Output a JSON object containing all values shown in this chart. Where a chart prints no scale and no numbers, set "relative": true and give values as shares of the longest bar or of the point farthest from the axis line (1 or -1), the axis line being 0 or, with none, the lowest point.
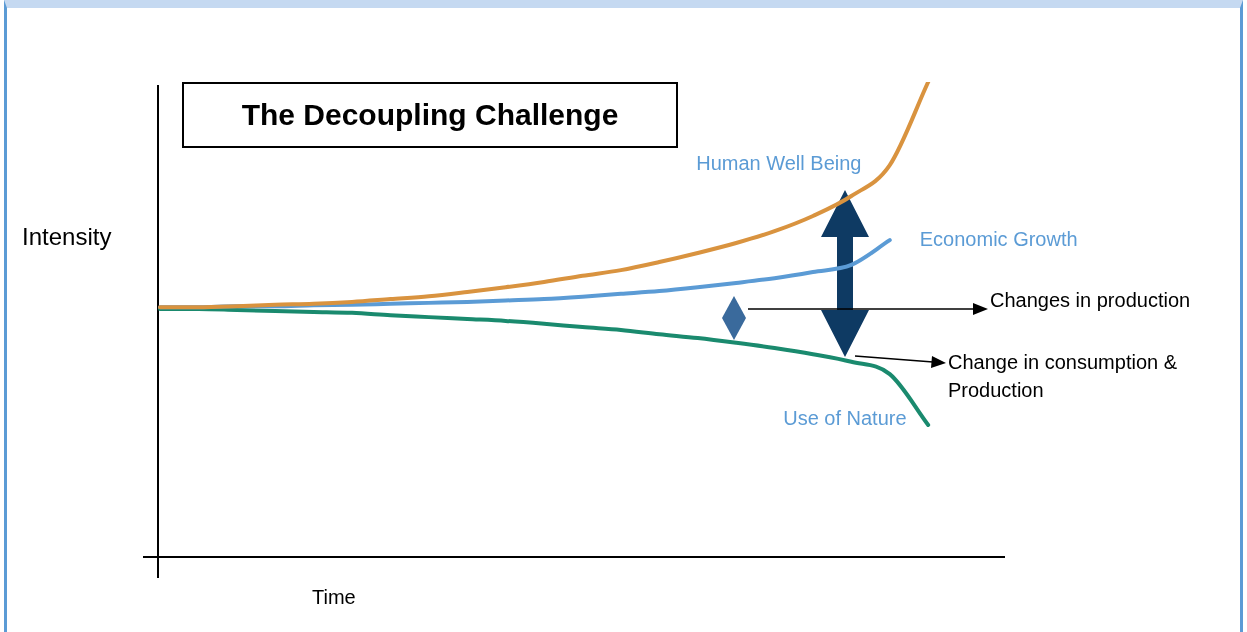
{
  "chart_data": {
    "type": "line",
    "relative": true,
    "title": "The Decoupling Challenge",
    "xlabel": "Time",
    "ylabel": "Intensity",
    "tick_labels": false,
    "legend": false,
    "marker": "none",
    "line_style": "solid",
    "grid": false,
    "categories": [
      null,
      null,
      null,
      null,
      null,
      null,
      null,
      null,
      null,
      null,
      null,
      null,
      null,
      null,
      null,
      null,
      null,
      null,
      null,
      null,
      null,
      null,
      null
    ],
    "series": [
      {
        "name": "Human Well Being",
        "color": "#d9933f",
        "values": [
          0.526,
          0.526,
          0.528,
          0.531,
          0.533,
          0.537,
          0.543,
          0.549,
          0.558,
          0.568,
          0.579,
          0.592,
          0.604,
          0.621,
          0.64,
          0.661,
          0.686,
          0.718,
          0.76,
          0.825,
          1.0,
          null,
          null
        ]
      },
      {
        "name": "Economic Growth",
        "color": "#5b9bd5",
        "values": [
          0.526,
          0.526,
          0.528,
          0.528,
          0.53,
          0.531,
          0.533,
          0.535,
          0.537,
          0.54,
          0.543,
          0.548,
          0.554,
          0.56,
          0.568,
          0.577,
          0.587,
          0.6,
          0.615,
          0.667,
          null,
          null,
          null
        ]
      },
      {
        "name": "Use of Nature",
        "color": "#1a8a6e",
        "values": [
          0.522,
          0.522,
          0.52,
          0.518,
          0.516,
          0.514,
          0.509,
          0.505,
          0.501,
          0.497,
          0.491,
          0.484,
          0.478,
          0.469,
          0.461,
          0.451,
          0.44,
          0.427,
          0.411,
          0.385,
          0.278,
          null,
          null
        ]
      }
    ],
    "annotations": [
      "Changes in production",
      "Change in consumption & Production"
    ]
  }
}
